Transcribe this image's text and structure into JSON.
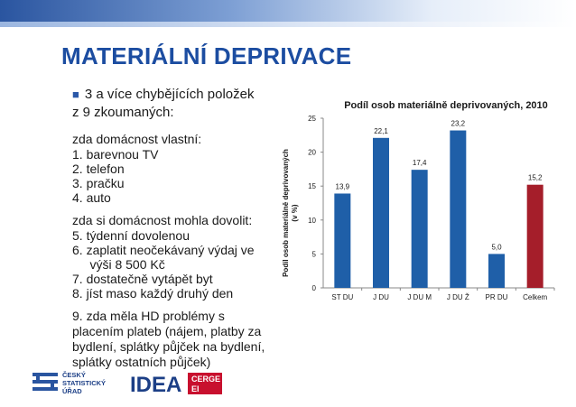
{
  "slide": {
    "title": "MATERIÁLNÍ DEPRIVACE",
    "intro_line1": "3 a více chybějících položek",
    "intro_line2": "z 9 zkoumaných:",
    "group1_title": "zda domácnost vlastní:",
    "group1_items": [
      "1.  barevnou TV",
      "2.  telefon",
      "3.  pračku",
      "4.  auto"
    ],
    "group2_title": "zda si domácnost mohla dovolit:",
    "group2_items": [
      "5.  týdenní dovolenou",
      "6.  zaplatit neočekávaný výdaj ve",
      "     výši 8 500 Kč",
      "7.  dostatečně vytápět byt",
      "8.  jíst maso každý druhý den"
    ],
    "group3_lines": [
      "9.  zda měla HD problémy s",
      "placením plateb (nájem, platby za",
      "bydlení, splátky půjček na bydlení,",
      "splátky ostatních půjček)"
    ]
  },
  "logos": {
    "csu_lines": [
      "ČESKÝ",
      "STATISTICKÝ",
      "ÚŘAD"
    ],
    "idea_text": "IDEA",
    "cerge_text": "CERGE",
    "ei_text": "EI"
  },
  "colors": {
    "title": "#1c4da1",
    "bar": "#1f5fa8",
    "bar_highlight": "#a51e2a",
    "bullet": "#2a58a8"
  },
  "chart_data": {
    "type": "bar",
    "title": "Podíl osob materiálně deprivovaných, 2010",
    "ylabel_line1": "Podíl osob materiálně deprivovaných",
    "ylabel_line2": "(v %)",
    "xlabel": "",
    "categories": [
      "ST DU",
      "J DU",
      "J DU M",
      "J DU Ž",
      "PR DU",
      "Celkem"
    ],
    "values": [
      13.9,
      22.1,
      17.4,
      23.2,
      5.0,
      15.2
    ],
    "value_labels": [
      "13,9",
      "22,1",
      "17,4",
      "23,2",
      "5,0",
      "15,2"
    ],
    "highlight_index": 5,
    "ylim": [
      0,
      25
    ],
    "yticks": [
      "0",
      "5",
      "10",
      "15",
      "20",
      "25"
    ],
    "grid": false,
    "legend": "none"
  }
}
